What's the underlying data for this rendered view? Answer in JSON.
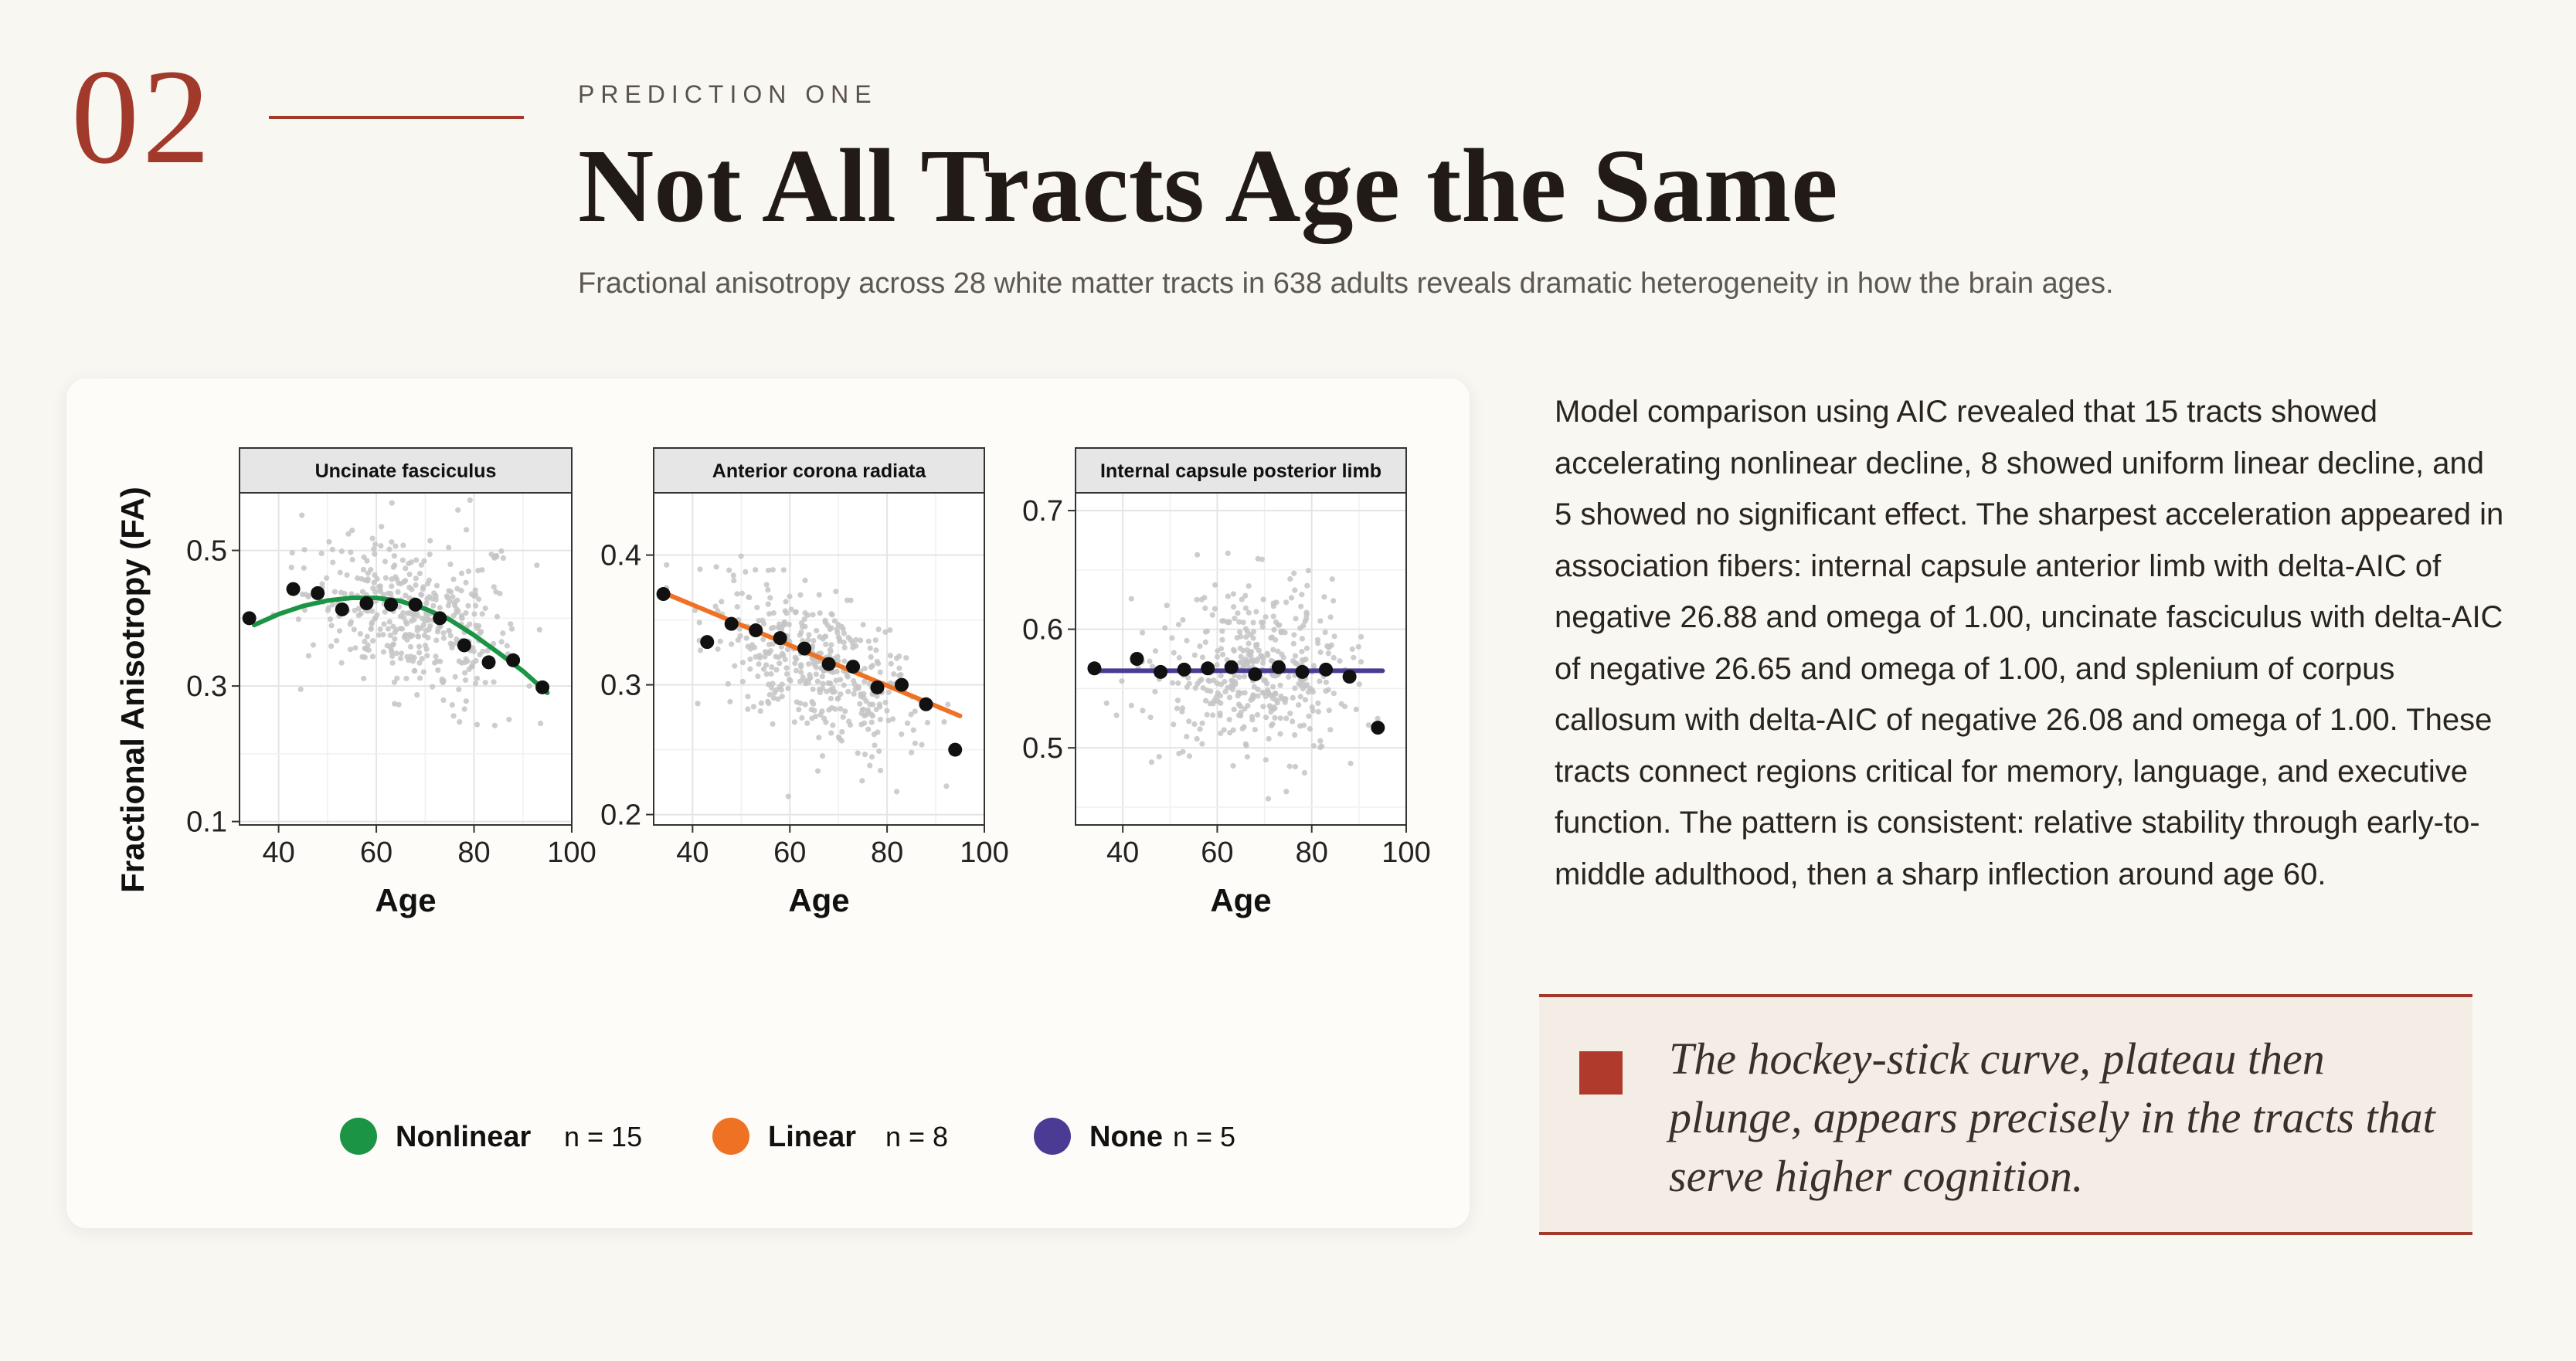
{
  "header": {
    "section_number": "02",
    "kicker": "PREDICTION ONE",
    "title": "Not All Tracts Age the Same",
    "subtitle": "Fractional anisotropy across 28 white matter tracts in 638 adults reveals dramatic heterogeneity in how the brain ages."
  },
  "body_text": "Model comparison using AIC revealed that 15 tracts showed accelerating nonlinear decline, 8 showed uniform linear decline, and 5 showed no significant effect. The sharpest acceleration appeared in association fibers: internal capsule anterior limb with delta-AIC of negative 26.88 and omega of 1.00, uncinate fasciculus with delta-AIC of negative 26.65 and omega of 1.00, and splenium of corpus callosum with delta-AIC of negative 26.08 and omega of 1.00. These tracts connect regions critical for memory, language, and executive function. The pattern is consistent: relative stability through early-to-middle adulthood, then a sharp inflection around age 60.",
  "quote": "The hockey-stick curve, plateau then plunge, appears precisely in the tracts that serve higher cognition.",
  "colors": {
    "accent": "#a23a2c",
    "nonlinear": "#1c9445",
    "linear": "#ef7224",
    "none": "#4b3b94"
  },
  "chart_data": {
    "type": "scatter",
    "ylabel": "Fractional Anisotropy (FA)",
    "legend_position": "bottom",
    "legend": [
      {
        "label": "Nonlinear",
        "count": "n = 15",
        "color": "#1c9445"
      },
      {
        "label": "Linear",
        "count": "n = 8",
        "color": "#ef7224"
      },
      {
        "label": "None",
        "count": "n = 5",
        "color": "#4b3b94"
      }
    ],
    "panels": [
      {
        "title": "Uncinate fasciculus",
        "xlabel": "Age",
        "xlim": [
          32,
          100
        ],
        "ylim": [
          0.095,
          0.585
        ],
        "xticks": [
          40,
          60,
          80,
          100
        ],
        "yticks": [
          0.1,
          0.3,
          0.5
        ],
        "ytick_labels": [
          "0.1",
          "0.3",
          "0.5"
        ],
        "fit_type": "nonlinear",
        "fit_color": "#1c9445",
        "fit": {
          "x": [
            35,
            40,
            45,
            50,
            55,
            60,
            65,
            70,
            75,
            80,
            85,
            90,
            95
          ],
          "y": [
            0.39,
            0.406,
            0.418,
            0.426,
            0.43,
            0.43,
            0.425,
            0.414,
            0.398,
            0.375,
            0.349,
            0.322,
            0.29
          ]
        },
        "binned_means": {
          "x": [
            34,
            43,
            48,
            53,
            58,
            63,
            68,
            73,
            78,
            83,
            88,
            94
          ],
          "y": [
            0.4,
            0.443,
            0.437,
            0.413,
            0.422,
            0.42,
            0.42,
            0.4,
            0.36,
            0.335,
            0.338,
            0.298
          ]
        },
        "cloud": {
          "mean_age": 68,
          "sd_age": 11,
          "intercept": 0.52,
          "slope": -0.0018,
          "sd": 0.05
        }
      },
      {
        "title": "Anterior corona radiata",
        "xlabel": "Age",
        "xlim": [
          32,
          100
        ],
        "ylim": [
          0.192,
          0.448
        ],
        "xticks": [
          40,
          60,
          80,
          100
        ],
        "yticks": [
          0.2,
          0.3,
          0.4
        ],
        "ytick_labels": [
          "0.2",
          "0.3",
          "0.4"
        ],
        "fit_type": "linear",
        "fit_color": "#ef7224",
        "fit": {
          "x": [
            34,
            95
          ],
          "y": [
            0.371,
            0.276
          ]
        },
        "binned_means": {
          "x": [
            34,
            43,
            48,
            53,
            58,
            63,
            68,
            73,
            78,
            83,
            88,
            94
          ],
          "y": [
            0.37,
            0.333,
            0.347,
            0.342,
            0.336,
            0.328,
            0.316,
            0.314,
            0.298,
            0.3,
            0.285,
            0.25
          ]
        },
        "cloud": {
          "mean_age": 66,
          "sd_age": 11,
          "intercept": 0.424,
          "slope": -0.0017,
          "sd": 0.027
        }
      },
      {
        "title": "Internal capsule posterior limb",
        "xlabel": "Age",
        "xlim": [
          30,
          100
        ],
        "ylim": [
          0.435,
          0.715
        ],
        "xticks": [
          40,
          60,
          80,
          100
        ],
        "yticks": [
          0.5,
          0.6,
          0.7
        ],
        "ytick_labels": [
          "0.5",
          "0.6",
          "0.7"
        ],
        "fit_type": "none",
        "fit_color": "#4b3b94",
        "fit": {
          "x": [
            34,
            95
          ],
          "y": [
            0.565,
            0.565
          ]
        },
        "binned_means": {
          "x": [
            34,
            43,
            48,
            53,
            58,
            63,
            68,
            73,
            78,
            83,
            88,
            94
          ],
          "y": [
            0.567,
            0.575,
            0.564,
            0.566,
            0.567,
            0.568,
            0.562,
            0.568,
            0.564,
            0.566,
            0.56,
            0.517
          ]
        },
        "cloud": {
          "mean_age": 68,
          "sd_age": 10,
          "intercept": 0.565,
          "slope": 0,
          "sd": 0.036
        }
      }
    ]
  }
}
